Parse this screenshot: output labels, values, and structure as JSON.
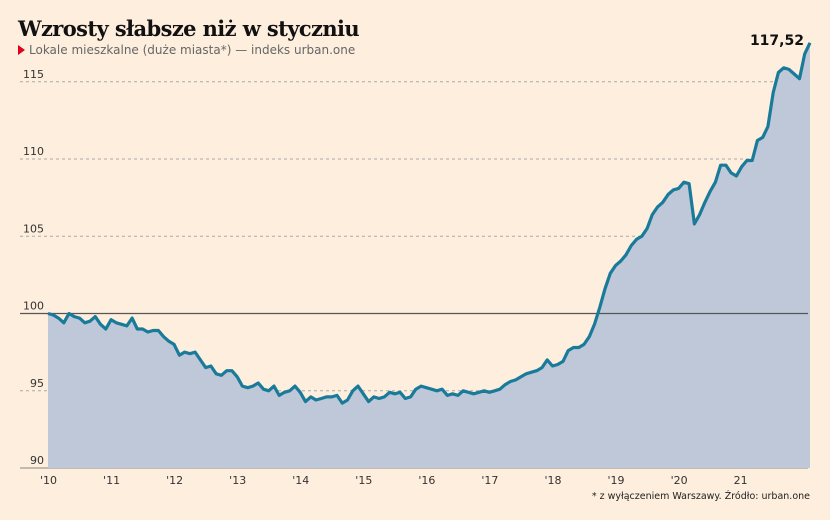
{
  "title": "Wzrosty słabsze niż w styczniu",
  "subtitle": "Lokale mieszkalne (duże miasta*) — indeks urban.one",
  "footnote": "* z wyłączeniem Warszawy. Źródło: urban.one",
  "chart_data": {
    "type": "area",
    "title": "Wzrosty słabsze niż w styczniu",
    "subtitle": "Lokale mieszkalne (duże miasta*) — indeks urban.one",
    "x_tick_labels": [
      "'10",
      "'11",
      "'12",
      "'13",
      "'14",
      "'15",
      "'16",
      "'17",
      "'18",
      "'19",
      "'20",
      "21"
    ],
    "y_ticks": [
      90,
      95,
      100,
      105,
      110,
      115
    ],
    "ylim": [
      90,
      118
    ],
    "x_start": "2010-01",
    "x_step": "month",
    "reference_line": 100,
    "end_label": "117,52",
    "grid": "horizontal dashed",
    "colors": {
      "line": "#1a7a9a",
      "area": "#bec8d8",
      "reference": "#555555",
      "grid": "#aaaaaa"
    },
    "values": [
      100,
      99.9,
      99.7,
      99.4,
      100,
      99.8,
      99.7,
      99.4,
      99.5,
      99.8,
      99.3,
      99.0,
      99.6,
      99.4,
      99.3,
      99.2,
      99.7,
      99.0,
      99.0,
      98.8,
      98.9,
      98.9,
      98.5,
      98.2,
      98.0,
      97.3,
      97.5,
      97.4,
      97.5,
      97.0,
      96.5,
      96.6,
      96.1,
      96.0,
      96.3,
      96.3,
      95.9,
      95.3,
      95.2,
      95.3,
      95.5,
      95.1,
      95.0,
      95.3,
      94.7,
      94.9,
      95.0,
      95.3,
      94.9,
      94.3,
      94.6,
      94.4,
      94.5,
      94.6,
      94.6,
      94.7,
      94.2,
      94.4,
      95.0,
      95.3,
      94.8,
      94.3,
      94.6,
      94.5,
      94.6,
      94.9,
      94.8,
      94.9,
      94.5,
      94.6,
      95.1,
      95.3,
      95.2,
      95.1,
      95.0,
      95.1,
      94.7,
      94.8,
      94.7,
      95.0,
      94.9,
      94.8,
      94.9,
      95.0,
      94.9,
      95.0,
      95.1,
      95.4,
      95.6,
      95.7,
      95.9,
      96.1,
      96.2,
      96.3,
      96.5,
      97.0,
      96.6,
      96.7,
      96.9,
      97.6,
      97.8,
      97.8,
      98.0,
      98.5,
      99.3,
      100.4,
      101.6,
      102.6,
      103.1,
      103.4,
      103.8,
      104.4,
      104.8,
      105.0,
      105.5,
      106.4,
      106.9,
      107.2,
      107.7,
      108.0,
      108.1,
      108.5,
      108.4,
      105.8,
      106.4,
      107.2,
      107.9,
      108.5,
      109.6,
      109.6,
      109.1,
      108.9,
      109.5,
      109.9,
      109.9,
      111.2,
      111.4,
      112.1,
      114.3,
      115.6,
      115.9,
      115.8,
      115.5,
      115.2,
      116.8,
      117.52
    ]
  }
}
